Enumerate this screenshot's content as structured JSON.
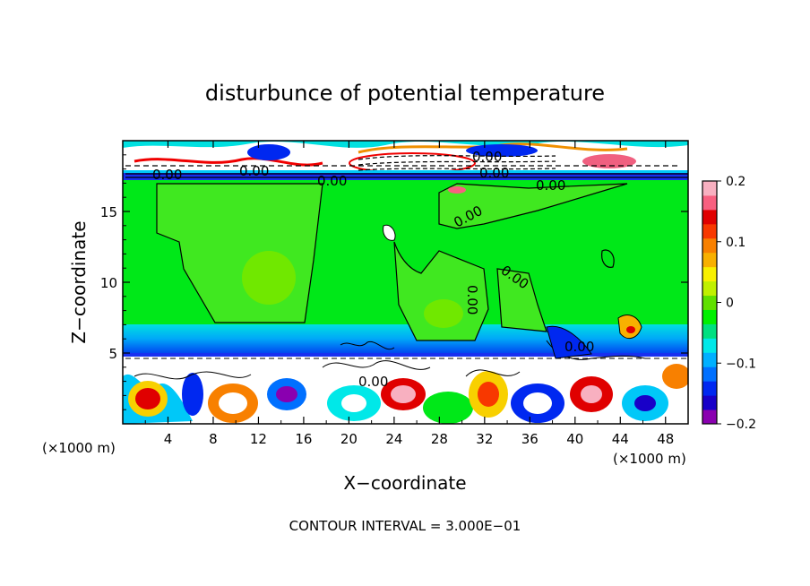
{
  "chart_data": {
    "type": "heatmap",
    "title": "disturbunce of potential temperature",
    "xlabel": "X−coordinate",
    "ylabel": "Z−coordinate",
    "x_unit_left": "(×1000 m)",
    "x_unit_right": "(×1000 m)",
    "xlim": [
      0,
      50
    ],
    "ylim": [
      0,
      20
    ],
    "x_ticks": [
      4,
      8,
      12,
      16,
      20,
      24,
      28,
      32,
      36,
      40,
      44,
      48
    ],
    "y_ticks": [
      5,
      10,
      15
    ],
    "colorbar": {
      "range": [
        -0.2,
        0.2
      ],
      "tick_values": [
        0.2,
        0.1,
        0,
        -0.1,
        -0.2
      ],
      "tick_labels": [
        "0.2",
        "0.1",
        "0",
        "−0.1",
        "−0.2"
      ],
      "colors": [
        "#8a00b0",
        "#1800c8",
        "#0028f0",
        "#0070ff",
        "#00b0ff",
        "#00e8e8",
        "#00e080",
        "#00f000",
        "#60e000",
        "#c0f000",
        "#f8f000",
        "#f8b000",
        "#f88000",
        "#f83800",
        "#e00000",
        "#f86080",
        "#f8b0c0"
      ]
    },
    "contour_labels": [
      "0.00",
      "0.00",
      "0.00",
      "0.00",
      "0.00",
      "0.00",
      "0.00",
      "0.00",
      "0.00",
      "0.00",
      "0.00"
    ],
    "contour_interval_text": "CONTOUR INTERVAL = 3.000E−01",
    "colors": {
      "background_field": "#00e818",
      "warm_anomaly": "#e00000",
      "cold_anomaly": "#0028f0",
      "stable_layer": "#00d8f0"
    }
  }
}
